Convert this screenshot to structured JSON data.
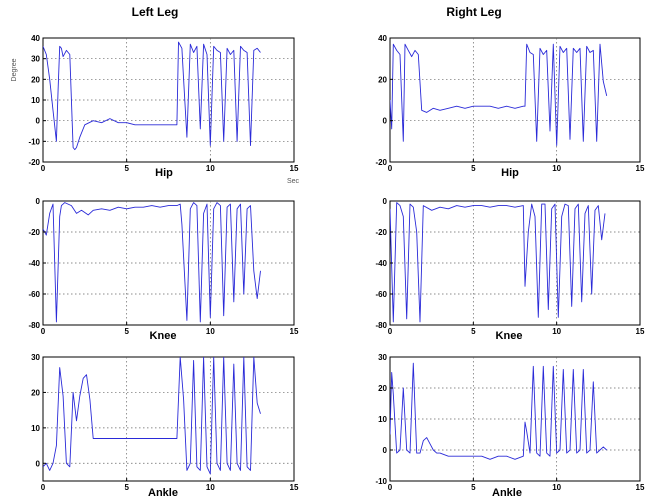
{
  "column_titles": [
    "Left Leg",
    "Right Leg"
  ],
  "ylabel": "Degree",
  "xunit": "Sec",
  "line_color": "#2a2ad8",
  "chart_data": [
    {
      "type": "line",
      "title": "Hip",
      "column": "Left Leg",
      "xlim": [
        0,
        15
      ],
      "ylim": [
        -20,
        40
      ],
      "xticks": [
        0,
        5,
        10,
        15
      ],
      "yticks": [
        40,
        30,
        20,
        10,
        0,
        -10,
        -20
      ],
      "grid": true,
      "series": [
        {
          "x": [
            0,
            0.2,
            0.4,
            0.6,
            0.8,
            0.9,
            1.0,
            1.1,
            1.2,
            1.4,
            1.6,
            1.8,
            1.9,
            2.0,
            2.2,
            2.5,
            3.0,
            3.5,
            4.0,
            4.5,
            5.0,
            5.5,
            6.0,
            6.5,
            7.0,
            7.5,
            8.0,
            8.1,
            8.3,
            8.4,
            8.6,
            8.8,
            9.0,
            9.2,
            9.4,
            9.6,
            9.8,
            10.0,
            10.2,
            10.4,
            10.6,
            10.8,
            11.0,
            11.2,
            11.4,
            11.6,
            11.8,
            12.0,
            12.2,
            12.4,
            12.6,
            12.8,
            13.0
          ],
          "y": [
            36,
            32,
            20,
            5,
            -10,
            15,
            36,
            35,
            31,
            34,
            32,
            -13,
            -14,
            -13,
            -8,
            -2,
            0,
            -1,
            1,
            -1,
            -1,
            -2,
            -2,
            -2,
            -2,
            -2,
            -2,
            38,
            35,
            20,
            -8,
            37,
            33,
            36,
            -4,
            37,
            32,
            -12,
            36,
            34,
            33,
            -10,
            35,
            32,
            34,
            -10,
            36,
            34,
            33,
            -12,
            34,
            35,
            33
          ]
        }
      ]
    },
    {
      "type": "line",
      "title": "Hip",
      "column": "Right Leg",
      "xlim": [
        0,
        15
      ],
      "ylim": [
        -20,
        40
      ],
      "xticks": [
        0,
        5,
        10,
        15
      ],
      "yticks": [
        40,
        20,
        0,
        -20
      ],
      "grid": true,
      "series": [
        {
          "x": [
            0,
            0.1,
            0.2,
            0.4,
            0.6,
            0.8,
            0.9,
            1.1,
            1.3,
            1.5,
            1.7,
            1.9,
            2.2,
            2.6,
            3.0,
            3.5,
            4.0,
            4.5,
            5.0,
            5.5,
            6.0,
            6.5,
            7.0,
            7.5,
            8.0,
            8.1,
            8.2,
            8.4,
            8.6,
            8.8,
            9.0,
            9.2,
            9.4,
            9.6,
            9.8,
            10.0,
            10.2,
            10.4,
            10.6,
            10.8,
            11.0,
            11.2,
            11.4,
            11.6,
            11.8,
            12.0,
            12.2,
            12.4,
            12.6,
            12.8,
            13.0
          ],
          "y": [
            10,
            -4,
            37,
            34,
            32,
            -10,
            37,
            34,
            31,
            34,
            32,
            5,
            4,
            6,
            5,
            6,
            7,
            6,
            7,
            7,
            7,
            6,
            7,
            6,
            7,
            7,
            37,
            33,
            32,
            -10,
            35,
            32,
            34,
            -5,
            37,
            -12,
            36,
            33,
            35,
            -9,
            35,
            33,
            35,
            -10,
            36,
            33,
            34,
            -10,
            37,
            19,
            12
          ]
        }
      ]
    },
    {
      "type": "line",
      "title": "Knee",
      "column": "Left Leg",
      "xlim": [
        0,
        15
      ],
      "ylim": [
        -80,
        0
      ],
      "xticks": [
        0,
        5,
        10,
        15
      ],
      "yticks": [
        0,
        -20,
        -40,
        -60,
        -80
      ],
      "grid": true,
      "series": [
        {
          "x": [
            0,
            0.2,
            0.4,
            0.6,
            0.8,
            1.0,
            1.1,
            1.3,
            1.5,
            1.7,
            2.0,
            2.3,
            2.7,
            3.0,
            3.5,
            4.0,
            4.5,
            5.0,
            5.5,
            6.0,
            6.5,
            7.0,
            7.5,
            8.0,
            8.2,
            8.3,
            8.6,
            8.8,
            9.0,
            9.2,
            9.4,
            9.6,
            9.8,
            10.0,
            10.2,
            10.4,
            10.6,
            10.8,
            11.0,
            11.2,
            11.4,
            11.6,
            11.8,
            12.0,
            12.2,
            12.4,
            12.6,
            12.8,
            13.0
          ],
          "y": [
            -18,
            -22,
            -8,
            -2,
            -78,
            -10,
            -3,
            -1,
            -2,
            -3,
            -8,
            -6,
            -9,
            -6,
            -5,
            -6,
            -4,
            -5,
            -4,
            -4,
            -3,
            -4,
            -3,
            -3,
            -2,
            -15,
            -77,
            -5,
            -1,
            -3,
            -78,
            -8,
            -2,
            -75,
            -5,
            -1,
            -3,
            -74,
            -4,
            -2,
            -65,
            -5,
            -2,
            -60,
            -5,
            -3,
            -45,
            -63,
            -45
          ]
        }
      ]
    },
    {
      "type": "line",
      "title": "Knee",
      "column": "Right Leg",
      "xlim": [
        0,
        15
      ],
      "ylim": [
        -80,
        0
      ],
      "xticks": [
        0,
        5,
        10,
        15
      ],
      "yticks": [
        0,
        -20,
        -40,
        -60,
        -80
      ],
      "grid": true,
      "series": [
        {
          "x": [
            0,
            0.2,
            0.4,
            0.6,
            0.8,
            1.0,
            1.2,
            1.4,
            1.6,
            1.8,
            2.0,
            2.5,
            3.0,
            3.5,
            4.0,
            4.5,
            5.0,
            5.5,
            6.0,
            6.5,
            7.0,
            7.5,
            8.0,
            8.1,
            8.3,
            8.5,
            8.7,
            8.9,
            9.1,
            9.3,
            9.5,
            9.7,
            9.9,
            10.1,
            10.3,
            10.5,
            10.7,
            10.9,
            11.1,
            11.3,
            11.5,
            11.7,
            11.9,
            12.1,
            12.3,
            12.5,
            12.7,
            12.9
          ],
          "y": [
            -5,
            -78,
            -1,
            -3,
            -10,
            -76,
            -2,
            -4,
            -20,
            -78,
            -3,
            -6,
            -4,
            -5,
            -3,
            -4,
            -3,
            -3,
            -4,
            -3,
            -3,
            -4,
            -3,
            -55,
            -20,
            -2,
            -10,
            -75,
            -2,
            -2,
            -70,
            -5,
            -2,
            -75,
            -10,
            -2,
            -3,
            -68,
            -5,
            -2,
            -65,
            -8,
            -3,
            -60,
            -6,
            -3,
            -25,
            -8
          ]
        }
      ]
    },
    {
      "type": "line",
      "title": "Ankle",
      "column": "Left Leg",
      "xlim": [
        0,
        15
      ],
      "ylim": [
        -5,
        30
      ],
      "xticks": [
        0,
        5,
        10,
        15
      ],
      "yticks": [
        30,
        20,
        10,
        0
      ],
      "grid": true,
      "series": [
        {
          "x": [
            0,
            0.2,
            0.4,
            0.6,
            0.8,
            1.0,
            1.2,
            1.4,
            1.6,
            1.8,
            2.0,
            2.2,
            2.4,
            2.6,
            2.8,
            3.0,
            3.5,
            4.0,
            4.5,
            5.0,
            5.5,
            6.0,
            6.5,
            7.0,
            7.5,
            8.0,
            8.2,
            8.4,
            8.6,
            8.8,
            9.0,
            9.2,
            9.4,
            9.6,
            9.8,
            10.0,
            10.2,
            10.4,
            10.6,
            10.8,
            11.0,
            11.2,
            11.4,
            11.6,
            11.8,
            12.0,
            12.2,
            12.4,
            12.6,
            12.8,
            13.0
          ],
          "y": [
            -1,
            0,
            -2,
            0,
            5,
            27,
            19,
            0,
            -1,
            20,
            12,
            19,
            24,
            25,
            18,
            7,
            7,
            7,
            7,
            7,
            7,
            7,
            7,
            7,
            7,
            7,
            30,
            18,
            -2,
            0,
            29,
            -1,
            -2,
            30,
            -1,
            -3,
            30,
            0,
            -2,
            30,
            0,
            -2,
            28,
            0,
            -2,
            30,
            -1,
            -2,
            30,
            17,
            14
          ]
        }
      ]
    },
    {
      "type": "line",
      "title": "Ankle",
      "column": "Right Leg",
      "xlim": [
        0,
        15
      ],
      "ylim": [
        -10,
        30
      ],
      "xticks": [
        0,
        5,
        10,
        15
      ],
      "yticks": [
        30,
        20,
        10,
        0,
        -10
      ],
      "grid": true,
      "series": [
        {
          "x": [
            0,
            0.1,
            0.2,
            0.4,
            0.6,
            0.8,
            1.0,
            1.2,
            1.4,
            1.6,
            1.8,
            2.0,
            2.2,
            2.4,
            2.6,
            2.8,
            3.0,
            3.5,
            4.0,
            4.5,
            5.0,
            5.5,
            6.0,
            6.5,
            7.0,
            7.5,
            8.0,
            8.1,
            8.2,
            8.4,
            8.6,
            8.8,
            9.0,
            9.2,
            9.4,
            9.6,
            9.8,
            10.0,
            10.2,
            10.4,
            10.6,
            10.8,
            11.0,
            11.2,
            11.4,
            11.6,
            11.8,
            12.0,
            12.2,
            12.4,
            12.6,
            12.8,
            13.0
          ],
          "y": [
            5,
            25,
            18,
            -1,
            0,
            20,
            0,
            -1,
            28,
            -1,
            -1,
            3,
            4,
            2,
            0,
            -1,
            -1,
            -2,
            -2,
            -2,
            -2,
            -2,
            -3,
            -2,
            -2,
            -3,
            -2,
            9,
            6,
            -1,
            27,
            -1,
            -2,
            27,
            -1,
            -2,
            27,
            -1,
            0,
            26,
            -1,
            0,
            26,
            -1,
            0,
            26,
            -1,
            0,
            22,
            -1,
            0,
            1,
            0
          ]
        }
      ]
    }
  ]
}
